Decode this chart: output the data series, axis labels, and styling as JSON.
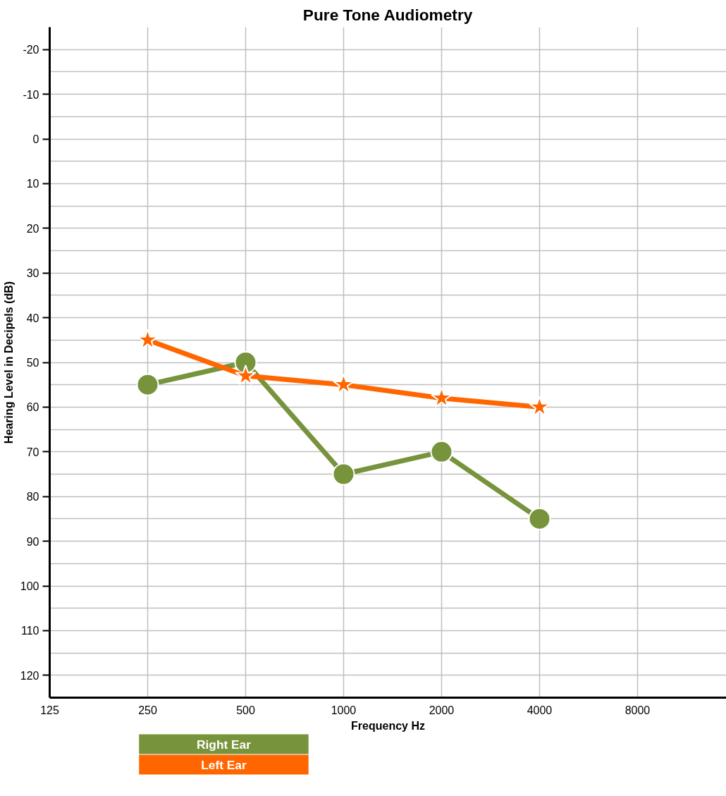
{
  "chart_data": {
    "type": "line",
    "title": "Pure Tone Audiometry",
    "xlabel": "Frequency Hz",
    "ylabel": "Hearing Level in Decipels (dB)",
    "x": [
      250,
      500,
      1000,
      2000,
      4000
    ],
    "log": "x",
    "series": [
      {
        "name": "Right Ear",
        "color": "#77933c",
        "marker": "circle",
        "values": [
          55,
          50,
          75,
          70,
          85
        ]
      },
      {
        "name": "Left Ear",
        "color": "#ff6600",
        "marker": "star",
        "values": [
          45,
          53,
          55,
          58,
          60
        ]
      }
    ],
    "xlim": [
      125,
      15000
    ],
    "xticks": [
      125,
      250,
      500,
      1000,
      2000,
      4000,
      8000
    ],
    "ylim": [
      125,
      -25
    ],
    "yticks": [
      -20,
      -10,
      0,
      10,
      20,
      30,
      40,
      50,
      60,
      70,
      80,
      90,
      100,
      110,
      120
    ],
    "grid": true,
    "legend": "bottom"
  }
}
